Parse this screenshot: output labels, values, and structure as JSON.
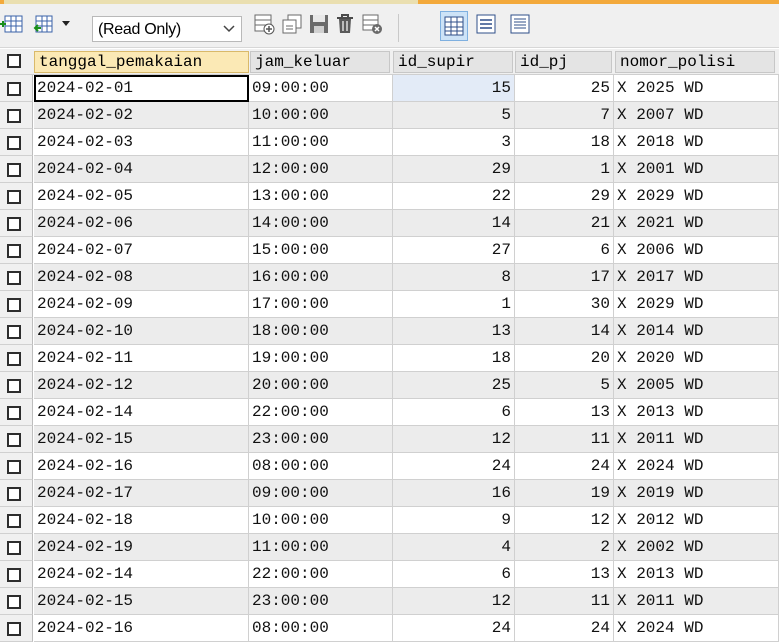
{
  "toolbar": {
    "mode_select": "(Read Only)",
    "icons": [
      "add-row-icon",
      "export-icon",
      "save-icon",
      "delete-icon",
      "cancel-icon",
      "grid-view-icon",
      "form-view-icon",
      "text-view-icon"
    ]
  },
  "columns": [
    "tanggal_pemakaian",
    "jam_keluar",
    "id_supir",
    "id_pj",
    "nomor_polisi"
  ],
  "rows": [
    [
      "2024-02-01",
      "09:00:00",
      "15",
      "25",
      "X 2025 WD"
    ],
    [
      "2024-02-02",
      "10:00:00",
      "5",
      "7",
      "X 2007 WD"
    ],
    [
      "2024-02-03",
      "11:00:00",
      "3",
      "18",
      "X 2018 WD"
    ],
    [
      "2024-02-04",
      "12:00:00",
      "29",
      "1",
      "X 2001 WD"
    ],
    [
      "2024-02-05",
      "13:00:00",
      "22",
      "29",
      "X 2029 WD"
    ],
    [
      "2024-02-06",
      "14:00:00",
      "14",
      "21",
      "X 2021 WD"
    ],
    [
      "2024-02-07",
      "15:00:00",
      "27",
      "6",
      "X 2006 WD"
    ],
    [
      "2024-02-08",
      "16:00:00",
      "8",
      "17",
      "X 2017 WD"
    ],
    [
      "2024-02-09",
      "17:00:00",
      "1",
      "30",
      "X 2029 WD"
    ],
    [
      "2024-02-10",
      "18:00:00",
      "13",
      "14",
      "X 2014 WD"
    ],
    [
      "2024-02-11",
      "19:00:00",
      "18",
      "20",
      "X 2020 WD"
    ],
    [
      "2024-02-12",
      "20:00:00",
      "25",
      "5",
      "X 2005 WD"
    ],
    [
      "2024-02-14",
      "22:00:00",
      "6",
      "13",
      "X 2013 WD"
    ],
    [
      "2024-02-15",
      "23:00:00",
      "12",
      "11",
      "X 2011 WD"
    ],
    [
      "2024-02-16",
      "08:00:00",
      "24",
      "24",
      "X 2024 WD"
    ],
    [
      "2024-02-17",
      "09:00:00",
      "16",
      "19",
      "X 2019 WD"
    ],
    [
      "2024-02-18",
      "10:00:00",
      "9",
      "12",
      "X 2012 WD"
    ],
    [
      "2024-02-19",
      "11:00:00",
      "4",
      "2",
      "X 2002 WD"
    ],
    [
      "2024-02-14",
      "22:00:00",
      "6",
      "13",
      "X 2013 WD"
    ],
    [
      "2024-02-15",
      "23:00:00",
      "12",
      "11",
      "X 2011 WD"
    ],
    [
      "2024-02-16",
      "08:00:00",
      "24",
      "24",
      "X 2024 WD"
    ]
  ]
}
